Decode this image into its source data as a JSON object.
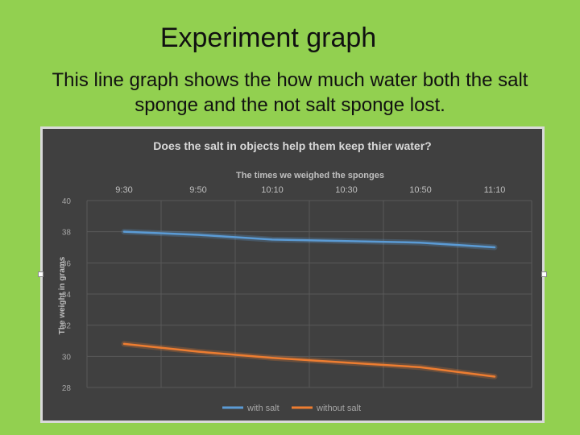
{
  "slide": {
    "title": "Experiment graph",
    "subtitle": "This line graph shows the how much water both the salt sponge and the not salt sponge lost."
  },
  "colors": {
    "background": "#92d050",
    "chart_bg": "#404040",
    "with_salt": "#5b9bd5",
    "without_salt": "#ed7d31"
  },
  "chart_data": {
    "type": "line",
    "title": "Does the salt in objects help them keep thier water?",
    "xlabel": "The times we weighed the sponges",
    "ylabel": "The weight in grams",
    "categories": [
      "9:30",
      "9:50",
      "10:10",
      "10:30",
      "10:50",
      "11:10"
    ],
    "ylim": [
      28,
      40
    ],
    "yticks": [
      "28",
      "30",
      "32",
      "34",
      "36",
      "38",
      "40"
    ],
    "x_axis_position": "top",
    "grid": true,
    "legend": "bottom",
    "series": [
      {
        "name": "with salt",
        "values": [
          38.0,
          37.8,
          37.5,
          37.4,
          37.3,
          37.0
        ]
      },
      {
        "name": "without salt",
        "values": [
          30.8,
          30.3,
          29.9,
          29.6,
          29.3,
          28.7
        ]
      }
    ]
  }
}
